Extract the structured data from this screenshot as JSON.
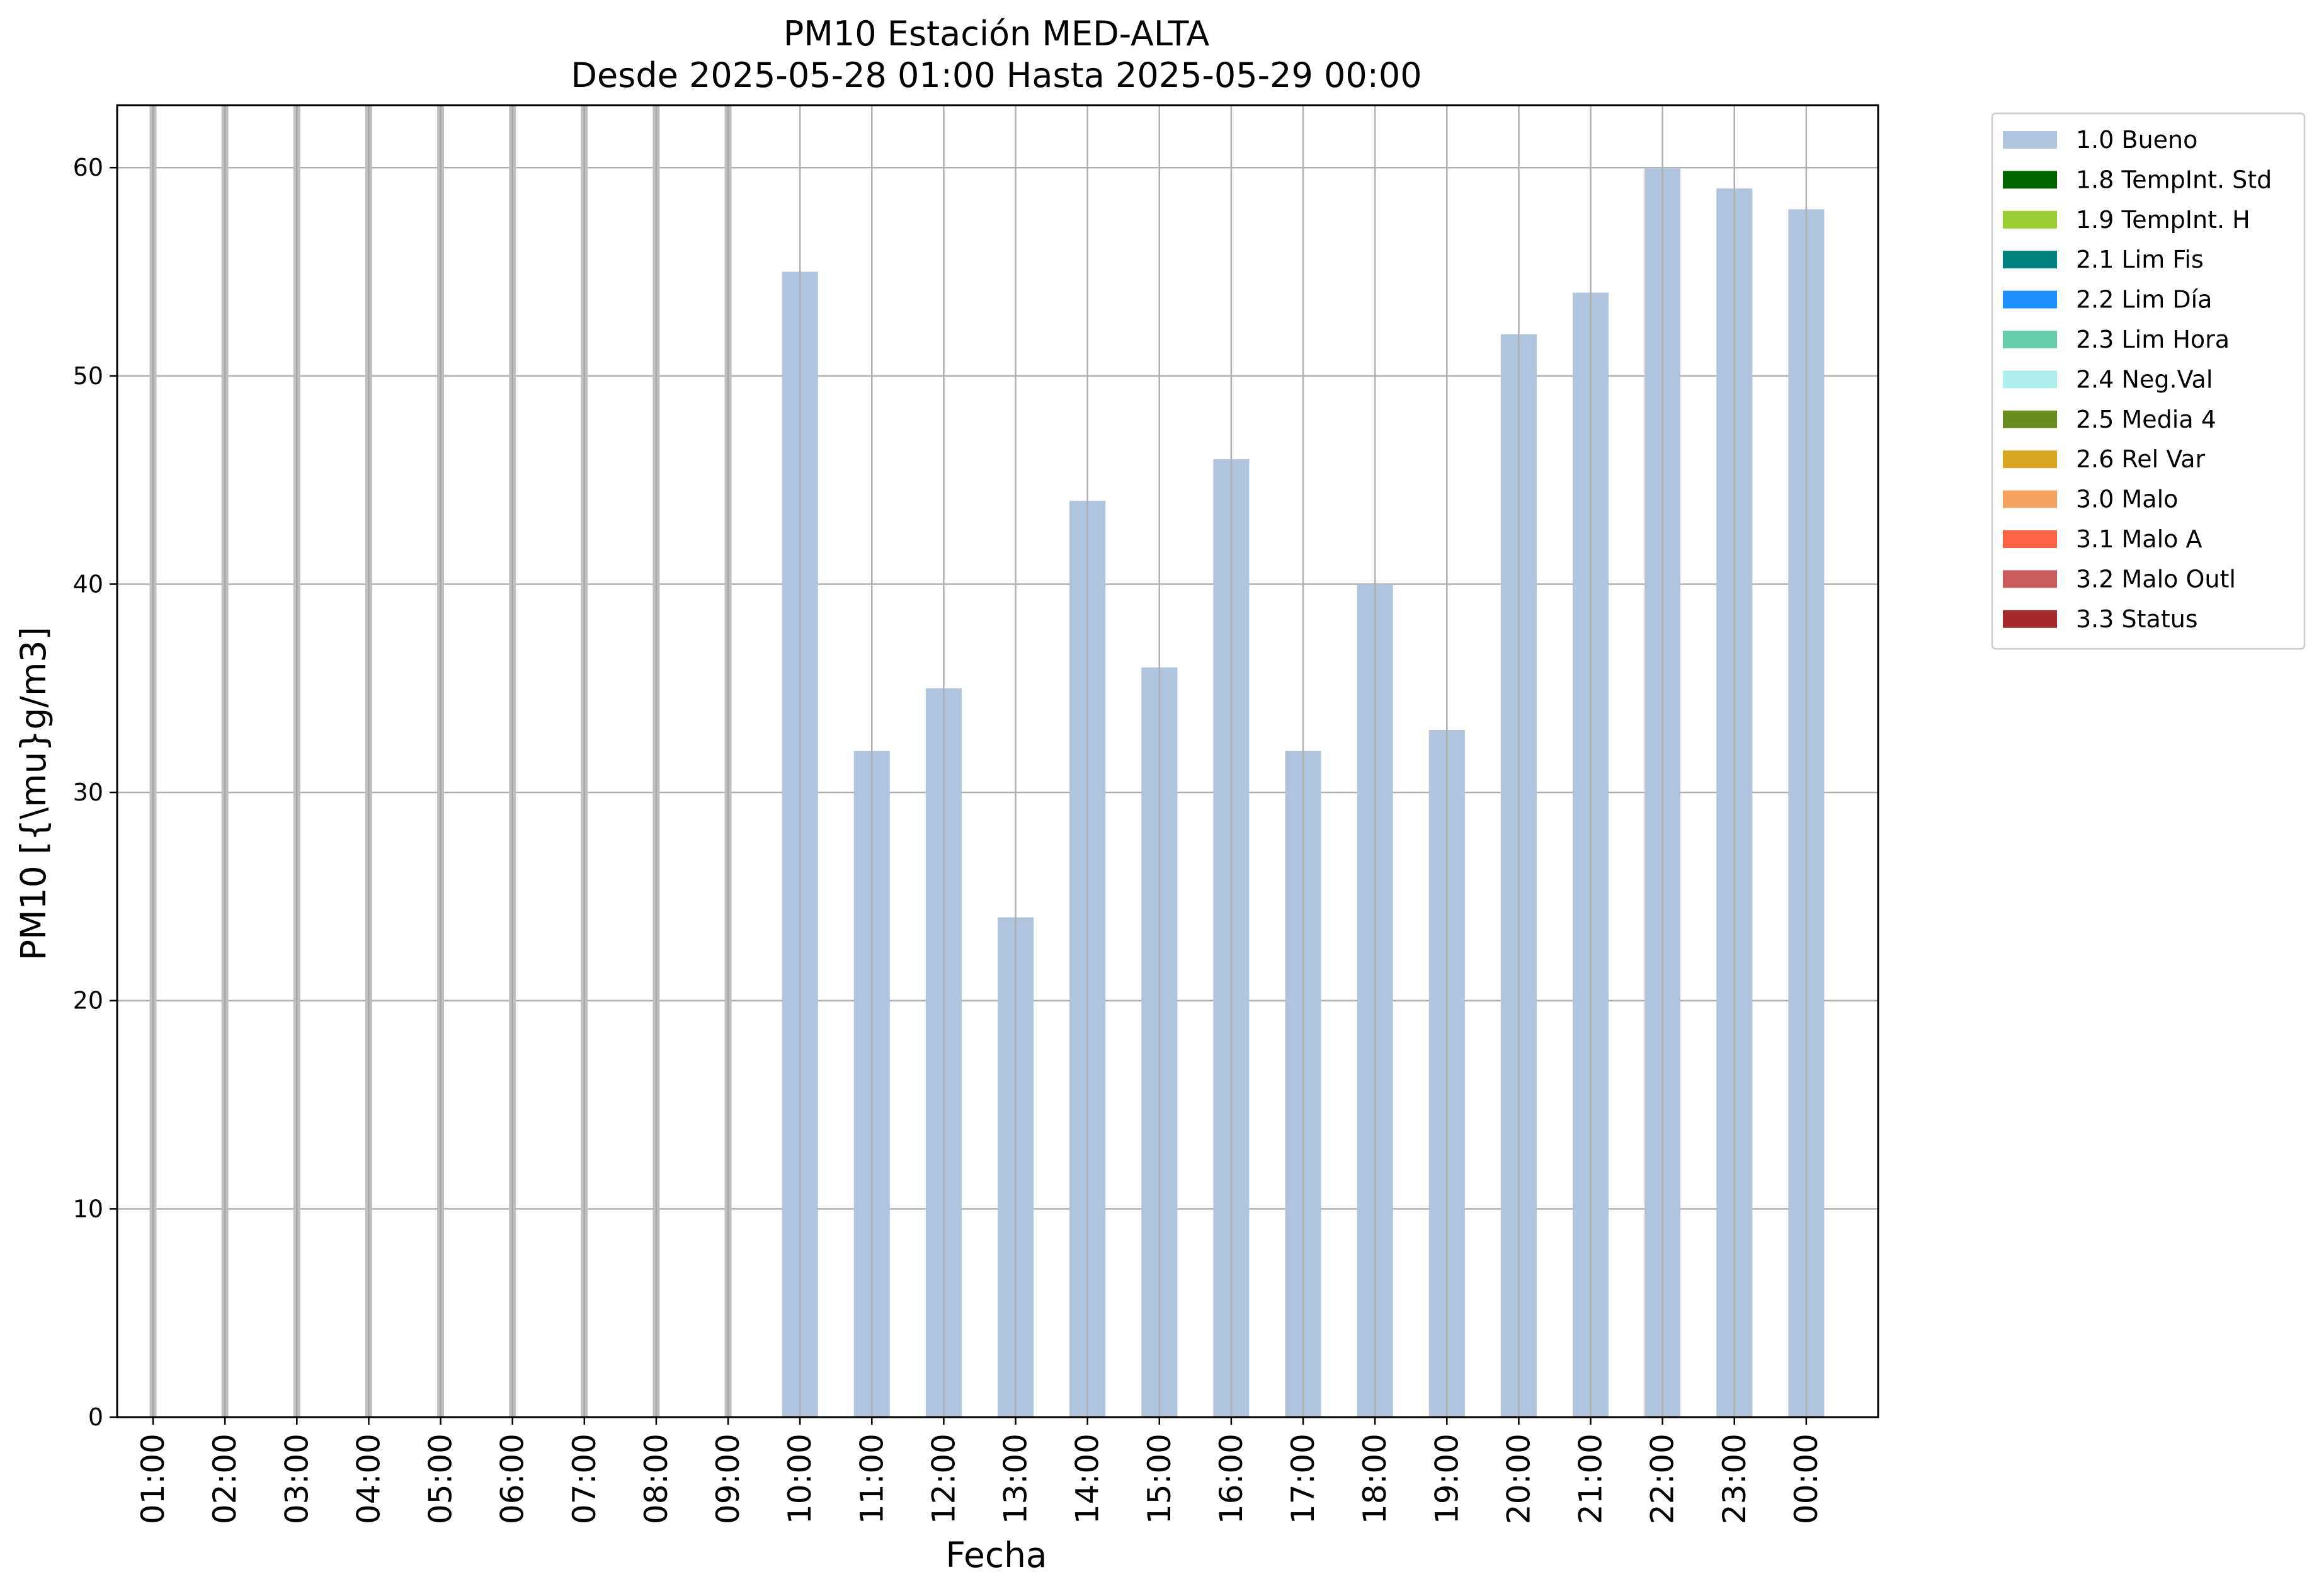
{
  "chart_data": {
    "type": "bar",
    "title": "PM10 Estación MED-ALTA",
    "subtitle": "Desde 2025-05-28 01:00 Hasta 2025-05-29 00:00",
    "xlabel": "Fecha",
    "ylabel": "PM10 [{\\mu}g/m3]",
    "ylim": [
      0,
      63
    ],
    "yticks": [
      0,
      10,
      20,
      30,
      40,
      50,
      60
    ],
    "grid": true,
    "legend_position": "outside-top-right",
    "categories": [
      "01:00",
      "02:00",
      "03:00",
      "04:00",
      "05:00",
      "06:00",
      "07:00",
      "08:00",
      "09:00",
      "10:00",
      "11:00",
      "12:00",
      "13:00",
      "14:00",
      "15:00",
      "16:00",
      "17:00",
      "18:00",
      "19:00",
      "20:00",
      "21:00",
      "22:00",
      "23:00",
      "00:00"
    ],
    "series": [
      {
        "name": "1.0 Bueno",
        "color": "#b0c4de",
        "values": [
          null,
          null,
          null,
          null,
          null,
          null,
          null,
          null,
          null,
          55,
          32,
          35,
          24,
          44,
          36,
          46,
          32,
          40,
          33,
          52,
          54,
          60,
          59,
          58
        ]
      }
    ],
    "legend": [
      {
        "label": "1.0 Bueno",
        "color": "#b0c4de"
      },
      {
        "label": "1.8 TempInt. Std",
        "color": "#006400"
      },
      {
        "label": "1.9 TempInt. H",
        "color": "#9acd32"
      },
      {
        "label": "2.1 Lim Fis",
        "color": "#008080"
      },
      {
        "label": "2.2 Lim Día",
        "color": "#1e90ff"
      },
      {
        "label": "2.3 Lim Hora",
        "color": "#66cdaa"
      },
      {
        "label": "2.4 Neg.Val",
        "color": "#afeeee"
      },
      {
        "label": "2.5 Media 4",
        "color": "#6b8e23"
      },
      {
        "label": "2.6 Rel Var",
        "color": "#daa520"
      },
      {
        "label": "3.0 Malo",
        "color": "#f4a460"
      },
      {
        "label": "3.1 Malo A",
        "color": "#ff6347"
      },
      {
        "label": "3.2 Malo Outl",
        "color": "#cd5c5c"
      },
      {
        "label": "3.3 Status",
        "color": "#a52a2a"
      }
    ]
  }
}
